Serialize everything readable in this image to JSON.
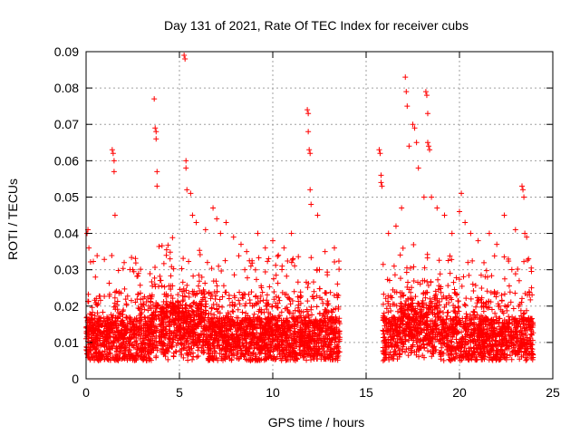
{
  "chart_data": {
    "type": "scatter",
    "title": "Day 131 of 2021, Rate Of TEC Index for receiver cubs",
    "xlabel": "GPS time / hours",
    "ylabel": "ROTI / TECUs",
    "xlim": [
      0,
      25
    ],
    "ylim": [
      0,
      0.09
    ],
    "xticks": [
      0,
      5,
      10,
      15,
      20,
      25
    ],
    "xtick_labels": [
      "0",
      "5",
      "10",
      "15",
      "20",
      "25"
    ],
    "yticks": [
      0,
      0.01,
      0.02,
      0.03,
      0.04,
      0.05,
      0.06,
      0.07,
      0.08,
      0.09
    ],
    "ytick_labels": [
      "0",
      "0.01",
      "0.02",
      "0.03",
      "0.04",
      "0.05",
      "0.06",
      "0.07",
      "0.08",
      "0.09"
    ],
    "grid": true,
    "marker": "+",
    "marker_color": "#ff0000",
    "series": [
      {
        "name": "ROTI",
        "note": "dense band approx. 0.005-0.02 TECU with sparser spikes; data gap ~13.6-15.9 h",
        "x": [
          0.05,
          0.1,
          0.15,
          1.4,
          1.45,
          1.5,
          1.5,
          1.55,
          3.65,
          3.7,
          3.75,
          3.75,
          3.8,
          3.8,
          5.25,
          5.3,
          5.35,
          5.35,
          5.4,
          5.6,
          5.7,
          5.9,
          6.4,
          6.8,
          7.0,
          7.2,
          7.5,
          7.9,
          8.3,
          8.6,
          9.2,
          9.6,
          10.0,
          10.3,
          10.6,
          11.0,
          11.85,
          11.9,
          11.9,
          11.95,
          12.0,
          12.0,
          12.05,
          12.4,
          12.8,
          13.3,
          15.7,
          15.75,
          15.8,
          15.8,
          15.85,
          16.2,
          16.6,
          16.9,
          17.1,
          17.15,
          17.2,
          17.3,
          17.5,
          17.6,
          17.7,
          17.8,
          18.1,
          18.2,
          18.25,
          18.3,
          18.3,
          18.35,
          18.4,
          18.5,
          18.8,
          19.2,
          19.6,
          20.0,
          20.1,
          20.3,
          20.6,
          21.0,
          21.6,
          22.0,
          22.4,
          23.0,
          23.35,
          23.4,
          23.45,
          23.5,
          23.6,
          23.7,
          0.5,
          2.5,
          4.5,
          6.5,
          8.5,
          10.5,
          12.5,
          16.5,
          19.5,
          21.5,
          23.2
        ],
        "y": [
          0.04,
          0.041,
          0.036,
          0.063,
          0.062,
          0.06,
          0.057,
          0.045,
          0.077,
          0.069,
          0.068,
          0.066,
          0.057,
          0.053,
          0.089,
          0.088,
          0.06,
          0.058,
          0.052,
          0.051,
          0.045,
          0.043,
          0.041,
          0.047,
          0.044,
          0.04,
          0.043,
          0.039,
          0.037,
          0.035,
          0.04,
          0.036,
          0.038,
          0.034,
          0.036,
          0.04,
          0.074,
          0.073,
          0.068,
          0.063,
          0.062,
          0.052,
          0.048,
          0.045,
          0.035,
          0.036,
          0.063,
          0.062,
          0.056,
          0.054,
          0.053,
          0.04,
          0.042,
          0.047,
          0.083,
          0.079,
          0.075,
          0.064,
          0.07,
          0.069,
          0.065,
          0.058,
          0.05,
          0.079,
          0.078,
          0.073,
          0.065,
          0.064,
          0.063,
          0.05,
          0.047,
          0.045,
          0.04,
          0.046,
          0.051,
          0.043,
          0.04,
          0.038,
          0.04,
          0.037,
          0.045,
          0.041,
          0.053,
          0.052,
          0.05,
          0.04,
          0.039,
          0.033,
          0.028,
          0.03,
          0.033,
          0.032,
          0.03,
          0.031,
          0.03,
          0.031,
          0.029,
          0.028,
          0.027
        ]
      }
    ]
  }
}
